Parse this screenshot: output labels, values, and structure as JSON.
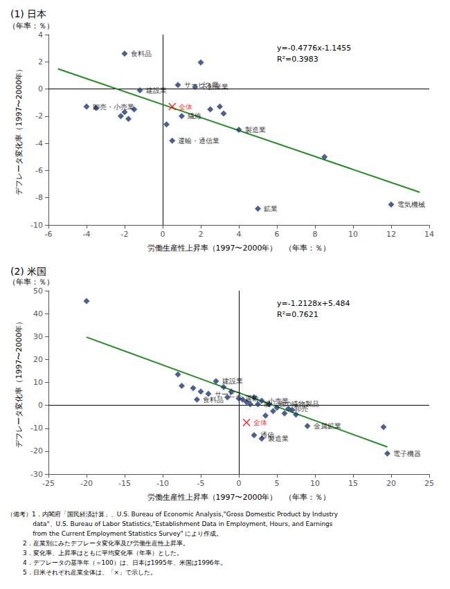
{
  "chart_data": [
    {
      "type": "scatter",
      "title": "(1) 日本",
      "xlabel": "労働生産性上昇率（1997〜2000年）　（年率：％）",
      "ylabel": "デフレータ変化率（1997〜2000年）",
      "yunit": "（年率：％）",
      "annotations": [
        "y=-0.4776x-1.1455",
        "R²=0.3983"
      ],
      "xlim": [
        -6,
        14
      ],
      "ylim": [
        -10,
        4
      ],
      "xticks": [
        -6,
        -4,
        -2,
        0,
        2,
        4,
        6,
        8,
        10,
        12,
        14
      ],
      "yticks": [
        -10,
        -8,
        -6,
        -4,
        -2,
        0,
        2,
        4
      ],
      "grid": false,
      "hlines": [
        0
      ],
      "vlines": [
        0
      ],
      "series": [
        {
          "type": "scatter",
          "marker": "diamond",
          "color": "#1e3a6e",
          "x": [
            -2.0,
            -1.2,
            0.8,
            2.0,
            1.7,
            -1.5,
            -2.0,
            -3.5,
            -4.0,
            -1.8,
            -2.2,
            0.2,
            1.0,
            0.5,
            2.5,
            3.0,
            3.2,
            4.0,
            5.0,
            8.5,
            12.0
          ],
          "values": [
            2.6,
            -0.1,
            0.3,
            1.95,
            0.15,
            -1.5,
            -1.7,
            -1.4,
            -1.3,
            -2.2,
            -2.0,
            -2.6,
            -2.0,
            -3.8,
            -1.5,
            -1.3,
            -1.8,
            -3.0,
            -8.8,
            -5.0,
            -8.5
          ],
          "labels": [
            "食料品",
            "建設業",
            "サービス業",
            null,
            "不動産業",
            null,
            null,
            null,
            "卸売・小売業",
            null,
            null,
            null,
            "繊維",
            "運輸・通信業",
            null,
            null,
            null,
            "製造業",
            "鉱業",
            null,
            "電気機械"
          ]
        },
        {
          "type": "scatter",
          "marker": "x",
          "color": "red",
          "x": [
            0.5
          ],
          "values": [
            -1.3
          ],
          "labels": [
            "全体"
          ]
        },
        {
          "type": "line",
          "line_style": "solid",
          "color": "#228B22",
          "x": [
            -5.5,
            13.5
          ],
          "values": [
            1.4813,
            -7.5931
          ]
        }
      ]
    },
    {
      "type": "scatter",
      "title": "(2) 米国",
      "xlabel": "労働生産性上昇率（1997〜2000年）　（年率：％）",
      "ylabel": "デフレータ変化率（1997〜2000年）",
      "yunit": "（年率：％）",
      "annotations": [
        "y=-1.2128x+5.484",
        "R²=0.7621"
      ],
      "xlim": [
        -25,
        25
      ],
      "ylim": [
        -30,
        50
      ],
      "xticks": [
        -25,
        -20,
        -15,
        -10,
        -5,
        0,
        5,
        10,
        15,
        20,
        25
      ],
      "yticks": [
        -30,
        -20,
        -10,
        0,
        10,
        20,
        30,
        40,
        50
      ],
      "grid": false,
      "hlines": [
        0
      ],
      "vlines": [
        0
      ],
      "series": [
        {
          "type": "scatter",
          "marker": "diamond",
          "color": "#1e3a6e",
          "x": [
            -20.0,
            -8.0,
            -7.5,
            -6.0,
            -5.0,
            -5.5,
            -4.0,
            -3.0,
            -2.0,
            -1.5,
            -1.0,
            0.0,
            0.5,
            1.0,
            1.5,
            2.0,
            2.5,
            3.0,
            3.5,
            4.0,
            4.5,
            5.0,
            6.0,
            6.5,
            7.0,
            7.5,
            9.0,
            19.0,
            19.5,
            2.0,
            3.0
          ],
          "values": [
            45.5,
            13.5,
            8.5,
            7.5,
            6.0,
            2.5,
            5.0,
            10.5,
            8.0,
            3.5,
            6.0,
            3.0,
            2.5,
            1.5,
            0.5,
            3.5,
            0.5,
            2.0,
            -4.5,
            0.5,
            -2.5,
            -1.0,
            -3.5,
            -1.5,
            -2.0,
            -4.0,
            -9.0,
            -9.5,
            -21.0,
            -13.0,
            -14.5
          ],
          "labels": [
            null,
            null,
            null,
            null,
            null,
            "食料品",
            "サービス",
            "建設業",
            null,
            null,
            null,
            "運輸",
            null,
            null,
            null,
            null,
            "服・他の繊物製品",
            "小売業",
            null,
            null,
            null,
            null,
            null,
            "卸売",
            null,
            null,
            "金属鉱業",
            null,
            "電子機器",
            "通信",
            "製造業"
          ]
        },
        {
          "type": "scatter",
          "marker": "x",
          "color": "red",
          "x": [
            1.0
          ],
          "values": [
            -7.5
          ],
          "labels": [
            "全体"
          ]
        },
        {
          "type": "line",
          "line_style": "solid",
          "color": "#228B22",
          "x": [
            -20.0,
            19.5
          ],
          "values": [
            29.74,
            -18.1656
          ]
        }
      ]
    }
  ],
  "footnote": [
    "（備考）1．内閣府「国民経済計算」、U.S. Bureau of Economic Analysis,\"Gross Domestic Product by Industry",
    "             data\"、U.S. Bureau of Labor Statistics,\"Establishment Data in Employment, Hours, and Earnings",
    "             from the Current Employment Statistics Survey\" により作成。",
    "        2．産業別にみたデフレータ変化率及び労働生産性上昇率。",
    "        3．変化率、上昇率はともに平均変化率（年率）とした。",
    "        4．デフレータの基準年（＝100）は、日本は1995年、米国は1996年。",
    "        5．日米それぞれ産業全体は、「×」で示した。"
  ]
}
